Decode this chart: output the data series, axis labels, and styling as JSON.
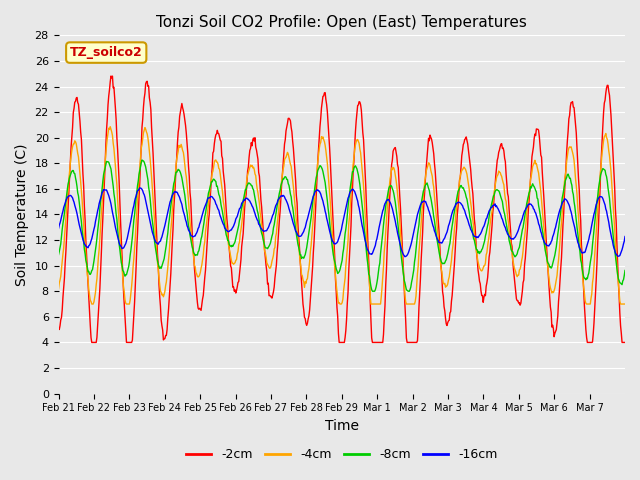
{
  "title": "Tonzi Soil CO2 Profile: Open (East) Temperatures",
  "xlabel": "Time",
  "ylabel": "Soil Temperature (C)",
  "ylim": [
    0,
    28
  ],
  "yticks": [
    0,
    2,
    4,
    6,
    8,
    10,
    12,
    14,
    16,
    18,
    20,
    22,
    24,
    26,
    28
  ],
  "xtick_labels": [
    "Feb 21",
    "Feb 22",
    "Feb 23",
    "Feb 24",
    "Feb 25",
    "Feb 26",
    "Feb 27",
    "Feb 28",
    "Feb 29",
    "Mar 1",
    "Mar 2",
    "Mar 3",
    "Mar 4",
    "Mar 5",
    "Mar 6",
    "Mar 7"
  ],
  "colors": {
    "-2cm": "#ff0000",
    "-4cm": "#ffa500",
    "-8cm": "#00cc00",
    "-16cm": "#0000ff"
  },
  "legend_label": "TZ_soilco2",
  "legend_box_color": "#ffffcc",
  "legend_text_color": "#cc0000",
  "bg_color": "#e8e8e8",
  "n_days": 16,
  "amplitude_2cm": 8.5,
  "amplitude_4cm": 5.5,
  "amplitude_8cm": 3.5,
  "amplitude_16cm": 1.8,
  "mean_temp": 13.5
}
